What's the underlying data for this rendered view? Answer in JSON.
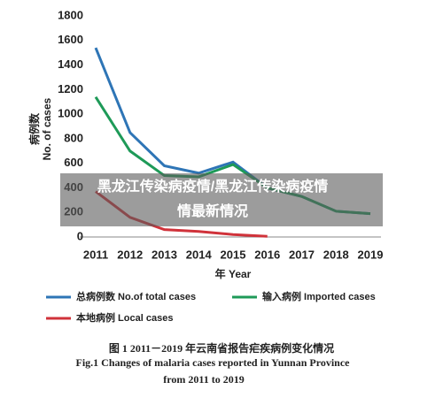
{
  "chart_data": {
    "type": "line",
    "categories": [
      "2011",
      "2012",
      "2013",
      "2014",
      "2015",
      "2016",
      "2017",
      "2018",
      "2019"
    ],
    "series": [
      {
        "name": "总病例数 No.of total cases",
        "color": "#2e75b6",
        "values": [
          1540,
          850,
          580,
          520,
          610,
          400,
          330,
          210,
          190
        ]
      },
      {
        "name": "输入病例 Imported cases",
        "color": "#1e9a58",
        "values": [
          1140,
          700,
          500,
          490,
          590,
          400,
          330,
          210,
          190
        ]
      },
      {
        "name": "本地病例 Local cases",
        "color": "#d0323a",
        "values": [
          370,
          160,
          60,
          45,
          20,
          5,
          null,
          null,
          null
        ]
      }
    ],
    "ylim": [
      0,
      1800
    ],
    "yticks": [
      0,
      200,
      400,
      600,
      800,
      1000,
      1200,
      1400,
      1600,
      1800
    ],
    "ylabel": [
      "病例数",
      "No. of cases"
    ],
    "xlabel": "年 Year",
    "grid": false,
    "caption": [
      "图 1   2011－2019 年云南省报告疟疾病例变化情况",
      "Fig.1   Changes of malaria cases reported in Yunnan Province",
      "from 2011 to 2019"
    ],
    "overlay": [
      "黑龙江传染病疫情/黑龙江传染病疫情",
      "情最新情况"
    ]
  }
}
